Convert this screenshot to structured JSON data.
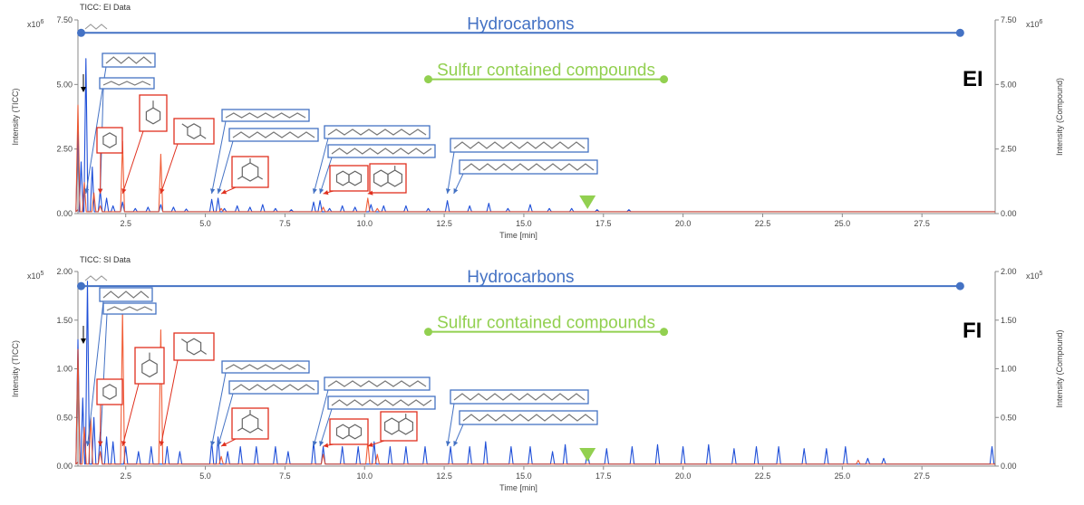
{
  "colors": {
    "hydrocarbon": "#4472c4",
    "sulfur": "#92d050",
    "trace_blue": "#1f4fd8",
    "trace_orange": "#f04e23",
    "box_blue": "#4472c4",
    "box_red": "#e0301e"
  },
  "chart_data": [
    {
      "type": "line",
      "title": "TICC: EI Data",
      "mode_label": "EI",
      "xlabel": "Time [min]",
      "ylabel_left": "Intensity (TICC)",
      "ylabel_right": "Intensity (Compound)",
      "exponent": "x10",
      "exponent_power": "6",
      "xlim": [
        1.0,
        29.8
      ],
      "ylim": [
        0,
        7.5
      ],
      "x_ticks": [
        "2.5",
        "5.0",
        "7.5",
        "10.0",
        "12.5",
        "15.0",
        "17.5",
        "20.0",
        "22.5",
        "25.0",
        "27.5"
      ],
      "y_ticks": [
        "0.00",
        "2.50",
        "5.00",
        "7.50"
      ],
      "bands": [
        {
          "name": "Hydrocarbons",
          "x_start": 1.1,
          "x_end": 28.7,
          "y": 7.0,
          "color": "#4472c4"
        },
        {
          "name": "Sulfur contained compounds",
          "x_start": 12.0,
          "x_end": 19.4,
          "y": 5.2,
          "color": "#92d050"
        }
      ],
      "marker": {
        "x": 17.0,
        "shape": "triangle-down",
        "color": "#92d050"
      },
      "series": [
        {
          "color": "#1f4fd8",
          "peaks": [
            [
              1.0,
              3.2
            ],
            [
              1.1,
              2.0
            ],
            [
              1.25,
              6.0
            ],
            [
              1.45,
              1.8
            ],
            [
              1.7,
              0.9
            ],
            [
              1.9,
              0.6
            ],
            [
              2.1,
              0.3
            ],
            [
              2.4,
              0.45
            ],
            [
              2.8,
              0.2
            ],
            [
              3.2,
              0.25
            ],
            [
              3.6,
              0.35
            ],
            [
              4.0,
              0.25
            ],
            [
              4.4,
              0.18
            ],
            [
              5.2,
              0.55
            ],
            [
              5.4,
              0.6
            ],
            [
              5.6,
              0.2
            ],
            [
              6.0,
              0.3
            ],
            [
              6.4,
              0.25
            ],
            [
              6.8,
              0.35
            ],
            [
              7.2,
              0.2
            ],
            [
              7.7,
              0.15
            ],
            [
              8.4,
              0.45
            ],
            [
              8.6,
              0.5
            ],
            [
              8.9,
              0.2
            ],
            [
              9.3,
              0.3
            ],
            [
              9.7,
              0.25
            ],
            [
              10.2,
              0.35
            ],
            [
              10.6,
              0.3
            ],
            [
              11.3,
              0.3
            ],
            [
              12.0,
              0.2
            ],
            [
              12.6,
              0.5
            ],
            [
              13.3,
              0.3
            ],
            [
              13.9,
              0.4
            ],
            [
              14.5,
              0.2
            ],
            [
              15.2,
              0.35
            ],
            [
              15.8,
              0.2
            ],
            [
              16.5,
              0.2
            ],
            [
              17.3,
              0.15
            ],
            [
              18.3,
              0.15
            ]
          ]
        },
        {
          "color": "#f04e23",
          "peaks": [
            [
              1.0,
              4.2
            ],
            [
              1.2,
              1.2
            ],
            [
              1.5,
              0.8
            ],
            [
              1.7,
              0.3
            ],
            [
              2.4,
              2.8
            ],
            [
              3.6,
              2.3
            ],
            [
              5.5,
              0.2
            ],
            [
              8.7,
              0.25
            ],
            [
              10.1,
              0.6
            ],
            [
              10.4,
              0.2
            ]
          ]
        }
      ],
      "annotations": [
        {
          "box": "blue",
          "structure": "C7 alkane chain",
          "target_x": 1.25
        },
        {
          "box": "blue",
          "structure": "C8 alkane chain",
          "target_x": 1.7
        },
        {
          "box": "red",
          "structure": "benzene",
          "target_x": 1.7
        },
        {
          "box": "red",
          "structure": "toluene",
          "target_x": 2.4
        },
        {
          "box": "red",
          "structure": "p-xylene",
          "target_x": 3.6
        },
        {
          "box": "blue",
          "structure": "C11 alkane chain",
          "target_x": 5.2
        },
        {
          "box": "blue",
          "structure": "C12 alkane chain",
          "target_x": 5.4
        },
        {
          "box": "red",
          "structure": "trimethylbenzene",
          "target_x": 5.5
        },
        {
          "box": "blue",
          "structure": "C13 alkane chain",
          "target_x": 8.4
        },
        {
          "box": "blue",
          "structure": "C14 alkane chain",
          "target_x": 8.6
        },
        {
          "box": "red",
          "structure": "naphthalene",
          "target_x": 8.7
        },
        {
          "box": "red",
          "structure": "methylnaphthalene",
          "target_x": 10.1
        },
        {
          "box": "blue",
          "structure": "C15 alkane chain",
          "target_x": 12.6
        },
        {
          "box": "blue",
          "structure": "C16 alkane chain",
          "target_x": 12.8
        }
      ]
    },
    {
      "type": "line",
      "title": "TICC: SI Data",
      "mode_label": "FI",
      "xlabel": "Time [min]",
      "ylabel_left": "Intensity (TICC)",
      "ylabel_right": "Intensity (Compound)",
      "exponent": "x10",
      "exponent_power": "5",
      "xlim": [
        1.0,
        29.8
      ],
      "ylim": [
        0,
        2.0
      ],
      "x_ticks": [
        "2.5",
        "5.0",
        "7.5",
        "10.0",
        "12.5",
        "15.0",
        "17.5",
        "20.0",
        "22.5",
        "25.0",
        "27.5"
      ],
      "y_ticks": [
        "0.00",
        "0.50",
        "1.00",
        "1.50",
        "2.00"
      ],
      "bands": [
        {
          "name": "Hydrocarbons",
          "x_start": 1.1,
          "x_end": 28.7,
          "y": 1.85,
          "color": "#4472c4"
        },
        {
          "name": "Sulfur contained compounds",
          "x_start": 12.0,
          "x_end": 19.4,
          "y": 1.38,
          "color": "#92d050"
        }
      ],
      "marker": {
        "x": 17.0,
        "shape": "triangle-down",
        "color": "#92d050"
      },
      "series": [
        {
          "color": "#1f4fd8",
          "peaks": [
            [
              1.0,
              1.3
            ],
            [
              1.15,
              0.7
            ],
            [
              1.3,
              1.9
            ],
            [
              1.5,
              0.5
            ],
            [
              1.7,
              0.35
            ],
            [
              1.9,
              0.3
            ],
            [
              2.1,
              0.25
            ],
            [
              2.5,
              0.2
            ],
            [
              2.9,
              0.15
            ],
            [
              3.3,
              0.2
            ],
            [
              3.8,
              0.2
            ],
            [
              4.2,
              0.15
            ],
            [
              5.2,
              0.25
            ],
            [
              5.4,
              0.3
            ],
            [
              5.7,
              0.15
            ],
            [
              6.1,
              0.2
            ],
            [
              6.6,
              0.2
            ],
            [
              7.2,
              0.2
            ],
            [
              7.6,
              0.15
            ],
            [
              8.4,
              0.25
            ],
            [
              8.7,
              0.2
            ],
            [
              9.3,
              0.2
            ],
            [
              9.8,
              0.2
            ],
            [
              10.3,
              0.25
            ],
            [
              10.8,
              0.2
            ],
            [
              11.3,
              0.2
            ],
            [
              11.9,
              0.2
            ],
            [
              12.7,
              0.2
            ],
            [
              13.3,
              0.2
            ],
            [
              13.8,
              0.25
            ],
            [
              14.6,
              0.2
            ],
            [
              15.2,
              0.2
            ],
            [
              15.9,
              0.15
            ],
            [
              16.3,
              0.22
            ],
            [
              17.0,
              0.15
            ],
            [
              17.6,
              0.18
            ],
            [
              18.4,
              0.2
            ],
            [
              19.2,
              0.22
            ],
            [
              20.0,
              0.2
            ],
            [
              20.8,
              0.22
            ],
            [
              21.6,
              0.18
            ],
            [
              22.3,
              0.2
            ],
            [
              23.0,
              0.2
            ],
            [
              23.8,
              0.18
            ],
            [
              24.5,
              0.18
            ],
            [
              25.1,
              0.2
            ],
            [
              25.8,
              0.08
            ],
            [
              26.3,
              0.08
            ],
            [
              29.7,
              0.2
            ]
          ]
        },
        {
          "color": "#f04e23",
          "peaks": [
            [
              1.0,
              1.2
            ],
            [
              1.2,
              0.4
            ],
            [
              1.4,
              0.5
            ],
            [
              1.7,
              0.15
            ],
            [
              2.4,
              1.6
            ],
            [
              3.6,
              1.4
            ],
            [
              5.5,
              0.1
            ],
            [
              8.7,
              0.12
            ],
            [
              10.1,
              0.25
            ],
            [
              10.4,
              0.12
            ],
            [
              25.5,
              0.06
            ]
          ]
        }
      ],
      "annotations": [
        {
          "box": "blue",
          "structure": "C7 alkane chain",
          "target_x": 1.3
        },
        {
          "box": "blue",
          "structure": "C8 alkane chain",
          "target_x": 1.7
        },
        {
          "box": "red",
          "structure": "benzene",
          "target_x": 1.7
        },
        {
          "box": "red",
          "structure": "toluene",
          "target_x": 2.4
        },
        {
          "box": "red",
          "structure": "p-xylene",
          "target_x": 3.6
        },
        {
          "box": "blue",
          "structure": "C11 alkane chain",
          "target_x": 5.2
        },
        {
          "box": "blue",
          "structure": "C12 alkane chain",
          "target_x": 5.4
        },
        {
          "box": "red",
          "structure": "trimethylbenzene",
          "target_x": 5.5
        },
        {
          "box": "blue",
          "structure": "C13 alkane chain",
          "target_x": 8.4
        },
        {
          "box": "blue",
          "structure": "C14 alkane chain",
          "target_x": 8.6
        },
        {
          "box": "red",
          "structure": "naphthalene",
          "target_x": 8.7
        },
        {
          "box": "red",
          "structure": "methylnaphthalene",
          "target_x": 10.1
        },
        {
          "box": "blue",
          "structure": "C15 alkane chain",
          "target_x": 12.6
        },
        {
          "box": "blue",
          "structure": "C16 alkane chain",
          "target_x": 12.8
        }
      ]
    }
  ]
}
